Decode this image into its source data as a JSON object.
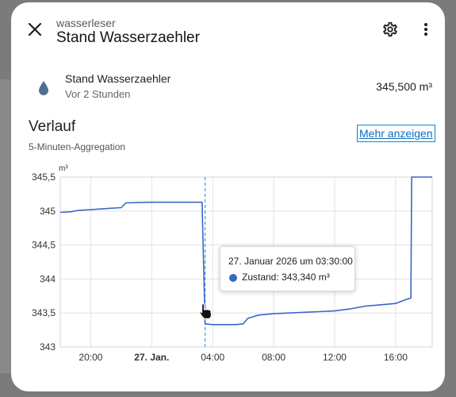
{
  "dialog": {
    "subtitle": "wasserleser",
    "title": "Stand Wasserzaehler"
  },
  "icons": {
    "close": "close-icon",
    "settings": "gear-icon",
    "more": "more-vert-icon",
    "entity": "water-drop-icon",
    "cursor": "hand-pointer-icon"
  },
  "entity": {
    "name": "Stand Wasserzaehler",
    "last_changed": "Vor 2 Stunden",
    "value": "345,500 m³"
  },
  "history": {
    "title": "Verlauf",
    "aggregation": "5-Minuten-Aggregation",
    "more_link": "Mehr anzeigen"
  },
  "colors": {
    "line": "#3b67c7",
    "link": "#0a6fbf",
    "crosshair": "#2ea0e0"
  },
  "tooltip": {
    "title": "27. Januar 2026 um 03:30:00",
    "series_line": "Zustand: 343,340 m³"
  },
  "chart_data": {
    "type": "line",
    "ylabel": "m³",
    "ylim": [
      343,
      345.5
    ],
    "y_ticks": [
      "345,5",
      "345",
      "344,5",
      "344",
      "343,5",
      "343"
    ],
    "y_tick_values": [
      345.5,
      345,
      344.5,
      344,
      343.5,
      343
    ],
    "x_ticks": [
      {
        "label": "20:00",
        "hour": 20,
        "bold": false
      },
      {
        "label": "27. Jan.",
        "hour": 24,
        "bold": true
      },
      {
        "label": "04:00",
        "hour": 28,
        "bold": false
      },
      {
        "label": "08:00",
        "hour": 32,
        "bold": false
      },
      {
        "label": "12:00",
        "hour": 36,
        "bold": false
      },
      {
        "label": "16:00",
        "hour": 40,
        "bold": false
      }
    ],
    "x_range_hours": [
      18.0,
      42.4
    ],
    "grid": true,
    "crosshair_hour": 27.5,
    "series": [
      {
        "points": [
          [
            18.0,
            344.98
          ],
          [
            18.7,
            344.99
          ],
          [
            19.2,
            345.01
          ],
          [
            20.0,
            345.02
          ],
          [
            21.2,
            345.04
          ],
          [
            22.0,
            345.05
          ],
          [
            22.3,
            345.12
          ],
          [
            24.0,
            345.13
          ],
          [
            25.5,
            345.13
          ],
          [
            27.3,
            345.13
          ],
          [
            27.5,
            343.34
          ],
          [
            28.0,
            343.33
          ],
          [
            29.0,
            343.33
          ],
          [
            29.5,
            343.33
          ],
          [
            30.0,
            343.34
          ],
          [
            30.3,
            343.42
          ],
          [
            31.0,
            343.47
          ],
          [
            32.0,
            343.49
          ],
          [
            33.0,
            343.5
          ],
          [
            34.0,
            343.51
          ],
          [
            35.0,
            343.52
          ],
          [
            36.0,
            343.53
          ],
          [
            37.0,
            343.56
          ],
          [
            38.0,
            343.6
          ],
          [
            39.0,
            343.62
          ],
          [
            40.0,
            343.64
          ],
          [
            40.7,
            343.7
          ],
          [
            41.0,
            343.72
          ],
          [
            41.05,
            345.5
          ],
          [
            42.4,
            345.5
          ]
        ]
      }
    ]
  }
}
